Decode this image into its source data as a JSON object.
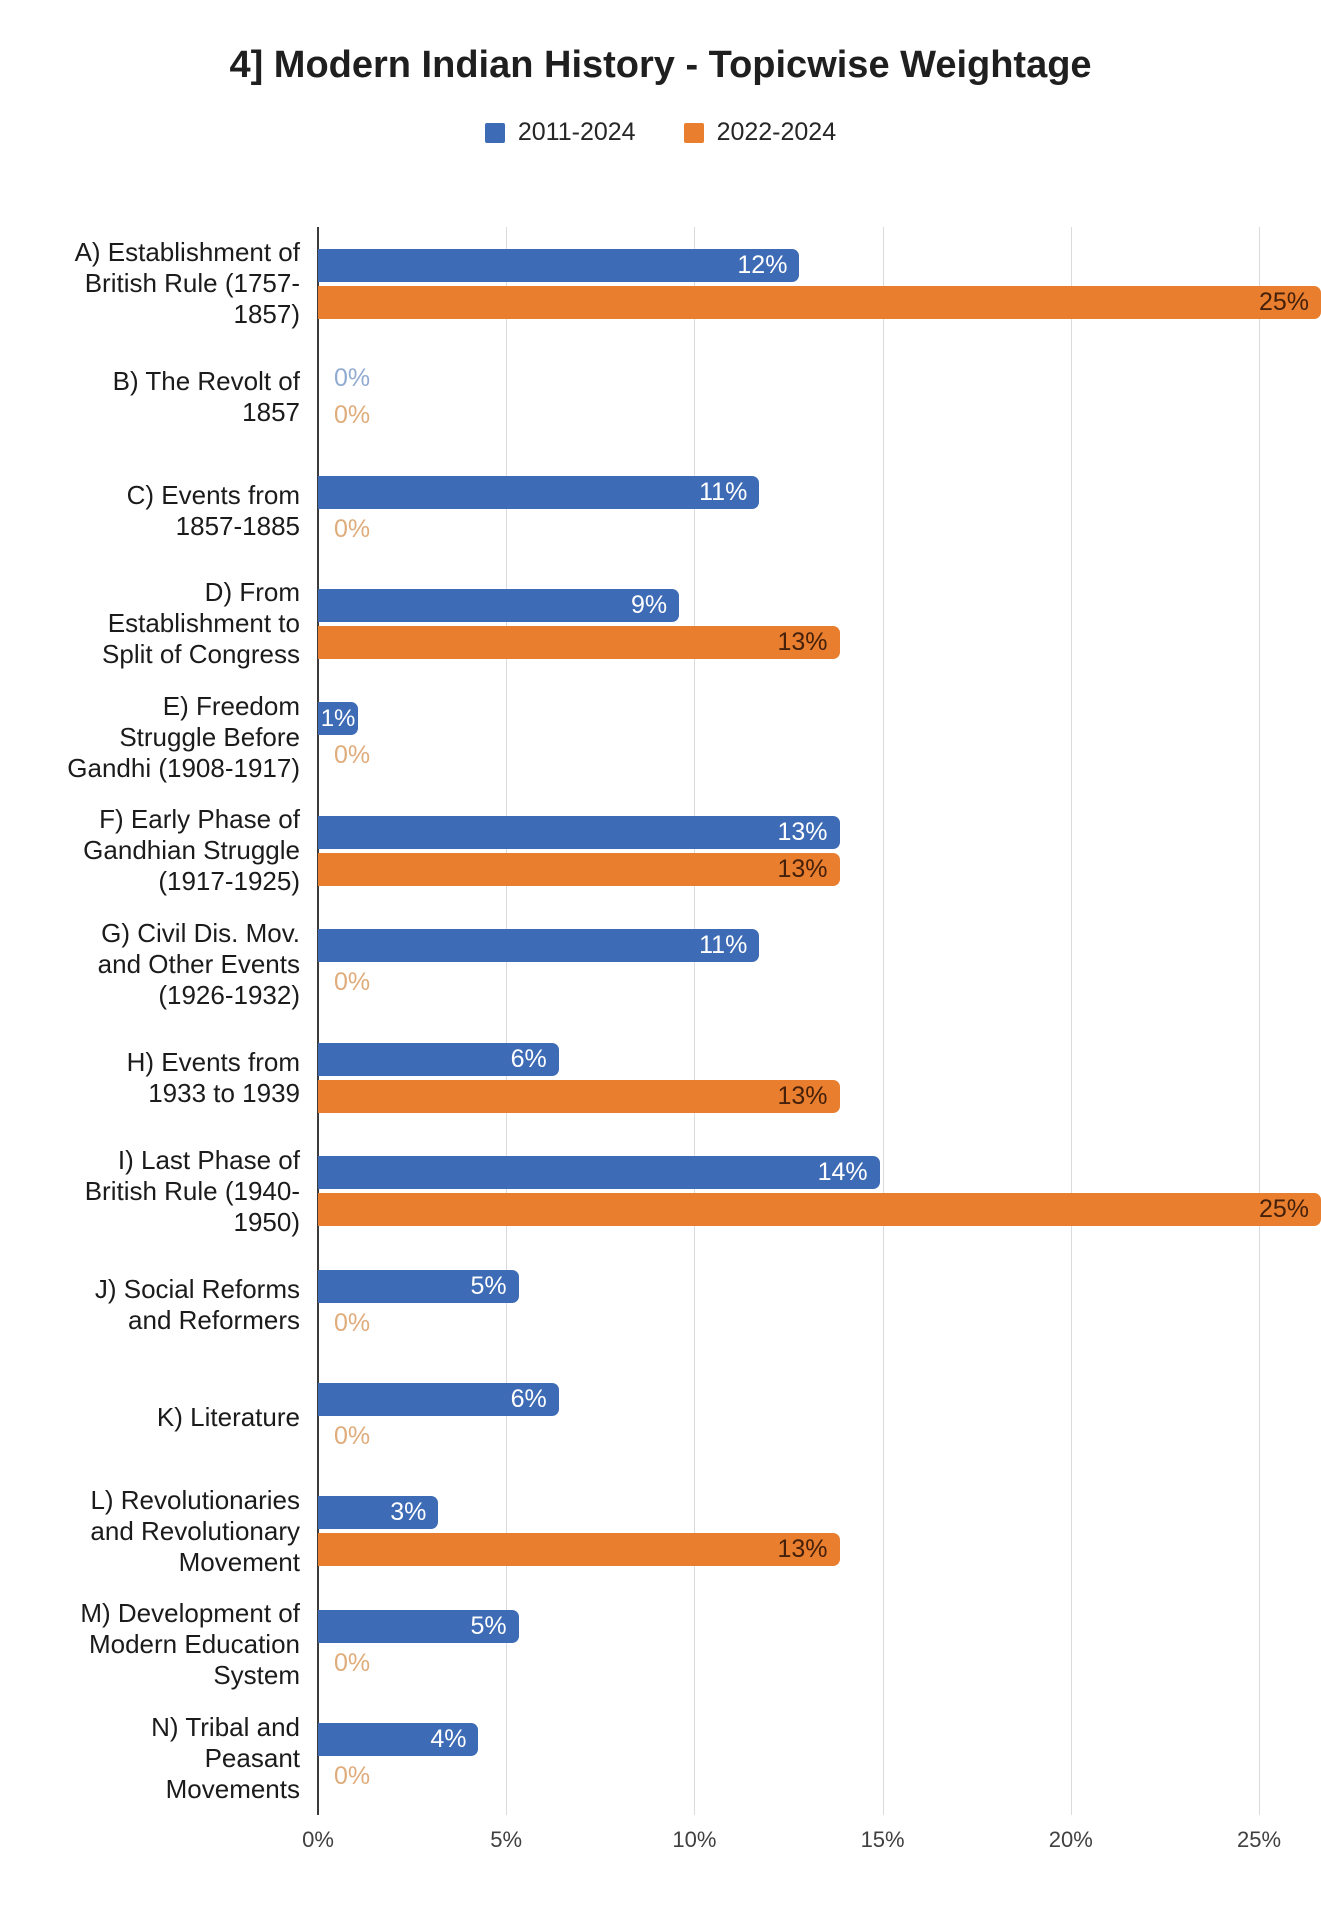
{
  "chart_data": {
    "type": "bar",
    "orientation": "horizontal",
    "title": "4] Modern Indian History - Topicwise Weightage",
    "legend_position": "top",
    "grid": true,
    "value_suffix": "%",
    "x_axis": {
      "ticks": [
        "0%",
        "5%",
        "10%",
        "15%",
        "20%",
        "25%"
      ],
      "max": 25
    },
    "categories": [
      {
        "id": "A",
        "label_lines": [
          "A) Establishment of",
          "British Rule (1757-",
          "1857)"
        ]
      },
      {
        "id": "B",
        "label_lines": [
          "B) The Revolt of",
          "1857"
        ]
      },
      {
        "id": "C",
        "label_lines": [
          "C) Events from",
          "1857-1885"
        ]
      },
      {
        "id": "D",
        "label_lines": [
          "D) From",
          "Establishment to",
          "Split of Congress"
        ]
      },
      {
        "id": "E",
        "label_lines": [
          "E) Freedom",
          "Struggle Before",
          "Gandhi (1908-1917)"
        ]
      },
      {
        "id": "F",
        "label_lines": [
          "F) Early Phase of",
          "Gandhian Struggle",
          "(1917-1925)"
        ]
      },
      {
        "id": "G",
        "label_lines": [
          "G) Civil Dis. Mov.",
          "and Other Events",
          "(1926-1932)"
        ]
      },
      {
        "id": "H",
        "label_lines": [
          "H) Events from",
          "1933 to 1939"
        ]
      },
      {
        "id": "I",
        "label_lines": [
          "I) Last Phase of",
          "British Rule (1940-",
          "1950)"
        ]
      },
      {
        "id": "J",
        "label_lines": [
          "J) Social Reforms",
          "and Reformers"
        ]
      },
      {
        "id": "K",
        "label_lines": [
          "K) Literature"
        ]
      },
      {
        "id": "L",
        "label_lines": [
          "L) Revolutionaries",
          "and Revolutionary",
          "Movement"
        ]
      },
      {
        "id": "M",
        "label_lines": [
          "M) Development of",
          "Modern Education",
          "System"
        ]
      },
      {
        "id": "N",
        "label_lines": [
          "N) Tribal and",
          "Peasant",
          "Movements"
        ]
      }
    ],
    "series": [
      {
        "name": "2011-2024",
        "color": "#3D6BB5",
        "values": [
          12,
          0,
          11,
          9,
          1,
          13,
          11,
          6,
          14,
          5,
          6,
          3,
          5,
          4
        ]
      },
      {
        "name": "2022-2024",
        "color": "#E87E2E",
        "values": [
          25,
          0,
          0,
          13,
          0,
          13,
          0,
          13,
          25,
          0,
          0,
          13,
          0,
          0
        ]
      }
    ],
    "style": {
      "label_color_on_blue": "#FFFFFF",
      "label_color_on_orange": "#45200A",
      "zero_label_color_blue": "#92ABD1",
      "zero_label_color_orange": "#DFAC7C",
      "gridline_color": "#DBDBDB",
      "axis_color": "#3C3C3C",
      "title_color": "#1F1F1F",
      "category_text_color": "#1B1B1B",
      "tick_text_color": "#404040"
    }
  }
}
